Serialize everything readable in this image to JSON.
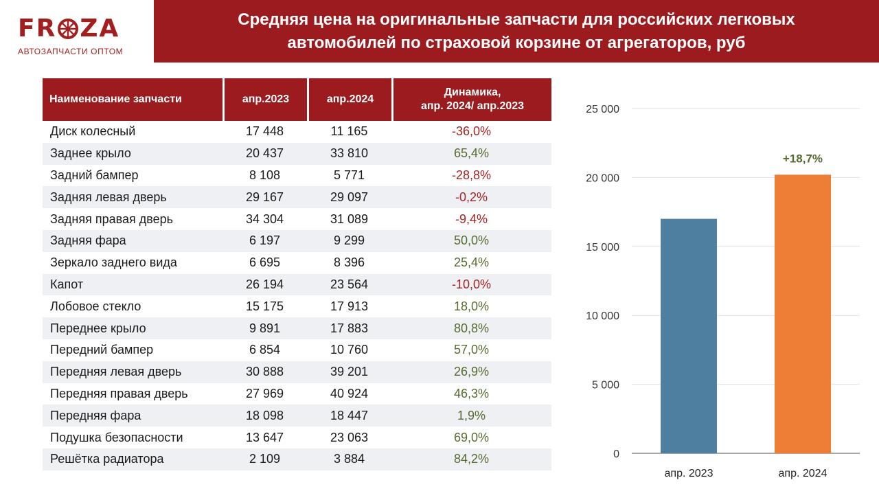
{
  "header": {
    "logo_text": "FROZA",
    "logo_subtitle": "АВТОЗАПЧАСТИ ОПТОМ",
    "title_line1": "Средняя цена на оригинальные запчасти для российских легковых",
    "title_line2": "автомобилей по страховой корзине от агрегаторов, руб"
  },
  "colors": {
    "brand": "#9b1b1f",
    "bar_2023": "#4e7fa0",
    "bar_2024": "#ee7e35",
    "negative": "#a52220",
    "positive": "#556b2f"
  },
  "table": {
    "headers": {
      "name": "Наименование запчасти",
      "apr2023": "апр.2023",
      "apr2024": "апр.2024",
      "dynamics_line1": "Динамика,",
      "dynamics_line2": "апр. 2024/ апр.2023"
    },
    "rows": [
      {
        "name": "Диск колесный",
        "apr2023": "17 448",
        "apr2024": "11 165",
        "change": "-36,0%"
      },
      {
        "name": "Заднее крыло",
        "apr2023": "20 437",
        "apr2024": "33 810",
        "change": "65,4%"
      },
      {
        "name": "Задний бампер",
        "apr2023": "8 108",
        "apr2024": "5 771",
        "change": "-28,8%"
      },
      {
        "name": "Задняя левая дверь",
        "apr2023": "29 167",
        "apr2024": "29 097",
        "change": "-0,2%"
      },
      {
        "name": "Задняя правая дверь",
        "apr2023": "34 304",
        "apr2024": "31 089",
        "change": "-9,4%"
      },
      {
        "name": "Задняя фара",
        "apr2023": "6 197",
        "apr2024": "9 299",
        "change": "50,0%"
      },
      {
        "name": "Зеркало заднего вида",
        "apr2023": "6 695",
        "apr2024": "8 396",
        "change": "25,4%"
      },
      {
        "name": "Капот",
        "apr2023": "26 194",
        "apr2024": "23 564",
        "change": "-10,0%"
      },
      {
        "name": "Лобовое стекло",
        "apr2023": "15 175",
        "apr2024": "17 913",
        "change": "18,0%"
      },
      {
        "name": "Переднее крыло",
        "apr2023": "9 891",
        "apr2024": "17 883",
        "change": "80,8%"
      },
      {
        "name": "Передний бампер",
        "apr2023": "6 854",
        "apr2024": "10 760",
        "change": "57,0%"
      },
      {
        "name": "Передняя левая дверь",
        "apr2023": "30 888",
        "apr2024": "39 201",
        "change": "26,9%"
      },
      {
        "name": "Передняя правая дверь",
        "apr2023": "27 969",
        "apr2024": "40 924",
        "change": "46,3%"
      },
      {
        "name": "Передняя фара",
        "apr2023": "18 098",
        "apr2024": "18 447",
        "change": "1,9%"
      },
      {
        "name": "Подушка безопасности",
        "apr2023": "13 647",
        "apr2024": "23 063",
        "change": "69,0%"
      },
      {
        "name": "Решётка радиатора",
        "apr2023": "2 109",
        "apr2024": "3 884",
        "change": "84,2%"
      }
    ]
  },
  "chart_data": {
    "type": "bar",
    "categories": [
      "апр. 2023",
      "апр. 2024"
    ],
    "values": [
      17000,
      20200
    ],
    "ylim": [
      0,
      25000
    ],
    "yticks": [
      0,
      5000,
      10000,
      15000,
      20000,
      25000
    ],
    "ytick_labels": [
      "0",
      "5 000",
      "10 000",
      "15 000",
      "20 000",
      "25 000"
    ],
    "grid": true,
    "annotation": "+18,7%",
    "title": "",
    "xlabel": "",
    "ylabel": ""
  }
}
